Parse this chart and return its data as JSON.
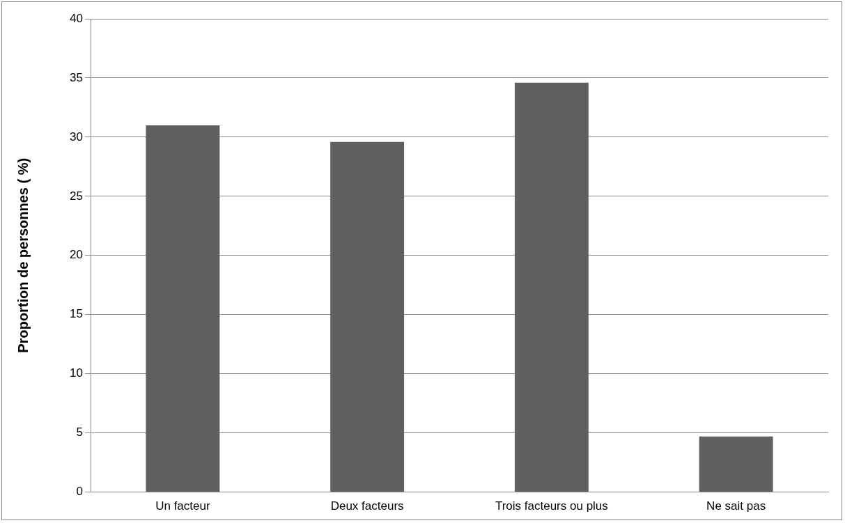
{
  "chart_data": {
    "type": "bar",
    "ylabel": "Proportion de personnes ( %)",
    "categories": [
      "Un facteur",
      "Deux facteurs",
      "Trois facteurs ou plus",
      "Ne sait pas"
    ],
    "values": [
      31.0,
      29.6,
      34.6,
      4.7
    ],
    "color": "#606060",
    "ylim": [
      0,
      40
    ],
    "yticks": [
      0,
      5,
      10,
      15,
      20,
      25,
      30,
      35,
      40
    ],
    "grid": "y",
    "legend": false
  }
}
